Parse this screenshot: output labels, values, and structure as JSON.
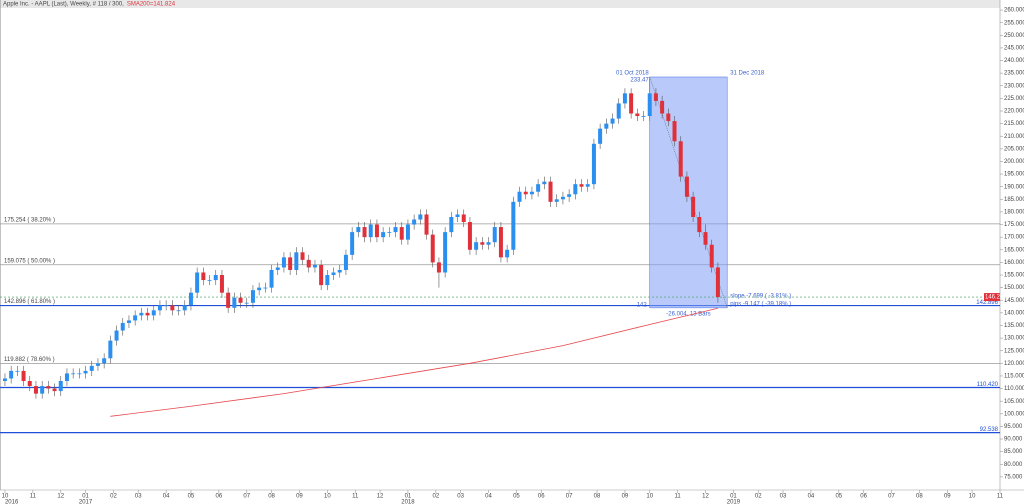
{
  "chart_data": {
    "type": "candlestick",
    "title": "Apple Inc. - AAPL (Last), Weekly, # 118 / 300,",
    "subtitle": "SMA200=141.824",
    "up_color": "#2a8ff0",
    "down_color": "#e0303a",
    "ohlc": [
      [
        113,
        116,
        111,
        114
      ],
      [
        114,
        119,
        112,
        117
      ],
      [
        117,
        119,
        115,
        117
      ],
      [
        117,
        119,
        111,
        113
      ],
      [
        113,
        115,
        109,
        111
      ],
      [
        111,
        113,
        106,
        108
      ],
      [
        108,
        113,
        106,
        111
      ],
      [
        111,
        113,
        108,
        110
      ],
      [
        110,
        112,
        107,
        109
      ],
      [
        109,
        115,
        107,
        113
      ],
      [
        113,
        118,
        111,
        116
      ],
      [
        116,
        118,
        114,
        116
      ],
      [
        116,
        118,
        114,
        116
      ],
      [
        116,
        119,
        114,
        117
      ],
      [
        117,
        121,
        115,
        119
      ],
      [
        119,
        122,
        117,
        120
      ],
      [
        120,
        124,
        118,
        122
      ],
      [
        122,
        131,
        120,
        129
      ],
      [
        129,
        135,
        127,
        133
      ],
      [
        133,
        138,
        131,
        136
      ],
      [
        136,
        139,
        134,
        137
      ],
      [
        137,
        141,
        135,
        139
      ],
      [
        139,
        142,
        137,
        140
      ],
      [
        140,
        142,
        137,
        139
      ],
      [
        139,
        143,
        137,
        141
      ],
      [
        141,
        145,
        139,
        143
      ],
      [
        143,
        145,
        141,
        143
      ],
      [
        143,
        145,
        139,
        141
      ],
      [
        141,
        143,
        139,
        141
      ],
      [
        141,
        145,
        139,
        143
      ],
      [
        143,
        150,
        141,
        148
      ],
      [
        148,
        158,
        146,
        156
      ],
      [
        156,
        158,
        151,
        153
      ],
      [
        153,
        155,
        151,
        153
      ],
      [
        153,
        157,
        151,
        155
      ],
      [
        155,
        157,
        146,
        148
      ],
      [
        148,
        150,
        140,
        142
      ],
      [
        142,
        148,
        140,
        146
      ],
      [
        146,
        148,
        142,
        144
      ],
      [
        144,
        146,
        142,
        144
      ],
      [
        144,
        151,
        142,
        149
      ],
      [
        149,
        152,
        147,
        150
      ],
      [
        150,
        152,
        148,
        150
      ],
      [
        150,
        159,
        148,
        157
      ],
      [
        157,
        160,
        155,
        158
      ],
      [
        158,
        164,
        156,
        162
      ],
      [
        162,
        164,
        155,
        157
      ],
      [
        157,
        166,
        155,
        164
      ],
      [
        164,
        166,
        159,
        161
      ],
      [
        161,
        163,
        156,
        158
      ],
      [
        158,
        161,
        156,
        159
      ],
      [
        159,
        161,
        149,
        151
      ],
      [
        151,
        157,
        149,
        155
      ],
      [
        155,
        158,
        153,
        156
      ],
      [
        156,
        159,
        154,
        157
      ],
      [
        157,
        165,
        155,
        163
      ],
      [
        163,
        174,
        161,
        172
      ],
      [
        172,
        176,
        170,
        174
      ],
      [
        174,
        176,
        168,
        170
      ],
      [
        170,
        177,
        168,
        175
      ],
      [
        175,
        177,
        168,
        170
      ],
      [
        170,
        174,
        168,
        172
      ],
      [
        172,
        174,
        170,
        172
      ],
      [
        172,
        176,
        170,
        174
      ],
      [
        174,
        176,
        167,
        169
      ],
      [
        169,
        177,
        167,
        175
      ],
      [
        175,
        179,
        173,
        177
      ],
      [
        177,
        181,
        175,
        179
      ],
      [
        179,
        181,
        169,
        171
      ],
      [
        171,
        173,
        158,
        160
      ],
      [
        160,
        162,
        150,
        156
      ],
      [
        156,
        174,
        154,
        172
      ],
      [
        172,
        180,
        170,
        178
      ],
      [
        178,
        181,
        176,
        179
      ],
      [
        179,
        181,
        174,
        176
      ],
      [
        176,
        178,
        163,
        165
      ],
      [
        165,
        170,
        163,
        168
      ],
      [
        168,
        170,
        165,
        167
      ],
      [
        167,
        170,
        165,
        168
      ],
      [
        168,
        176,
        166,
        174
      ],
      [
        174,
        176,
        160,
        162
      ],
      [
        162,
        167,
        160,
        165
      ],
      [
        165,
        186,
        163,
        184
      ],
      [
        184,
        190,
        182,
        188
      ],
      [
        188,
        190,
        185,
        187
      ],
      [
        187,
        190,
        185,
        188
      ],
      [
        188,
        193,
        186,
        191
      ],
      [
        191,
        194,
        189,
        192
      ],
      [
        192,
        194,
        182,
        184
      ],
      [
        184,
        187,
        182,
        185
      ],
      [
        185,
        188,
        183,
        186
      ],
      [
        186,
        189,
        184,
        187
      ],
      [
        187,
        193,
        185,
        191
      ],
      [
        191,
        193,
        188,
        190
      ],
      [
        190,
        193,
        188,
        191
      ],
      [
        191,
        209,
        189,
        207
      ],
      [
        207,
        215,
        205,
        213
      ],
      [
        213,
        217,
        211,
        215
      ],
      [
        215,
        219,
        213,
        217
      ],
      [
        217,
        225,
        215,
        223
      ],
      [
        223,
        229,
        221,
        227
      ],
      [
        227,
        229,
        217,
        219
      ],
      [
        219,
        221,
        216,
        218
      ],
      [
        218,
        220,
        216,
        218
      ],
      [
        218,
        233.47,
        216,
        227
      ],
      [
        227,
        229,
        222,
        224
      ],
      [
        224,
        226,
        217,
        219
      ],
      [
        219,
        221,
        214,
        216
      ],
      [
        216,
        218,
        206,
        208
      ],
      [
        208,
        210,
        192,
        194
      ],
      [
        194,
        196,
        184,
        186
      ],
      [
        186,
        188,
        176,
        178
      ],
      [
        178,
        180,
        170,
        172
      ],
      [
        172,
        175,
        165,
        167
      ],
      [
        167,
        169,
        156,
        158
      ],
      [
        158,
        160,
        144,
        146.263
      ]
    ],
    "sma": {
      "name": "SMA200",
      "color": "#e8454a",
      "x": [
        17,
        30,
        45,
        60,
        75,
        90,
        105,
        115
      ],
      "values": [
        99,
        103,
        108,
        114,
        120,
        127,
        136,
        141.824
      ]
    },
    "fib_levels": [
      {
        "value": 175.254,
        "label": "175.254 ( 38.20% )"
      },
      {
        "value": 159.075,
        "label": "159.075 ( 50.00% )"
      },
      {
        "value": 142.896,
        "label": "142.896 ( 61.80% )"
      },
      {
        "value": 119.882,
        "label": "119.882 ( 78.60% )"
      }
    ],
    "support_lines": [
      {
        "value": 142.896,
        "label": "142.896"
      },
      {
        "value": 110.42,
        "label": "110.420"
      },
      {
        "value": 92.538,
        "label": "92.538"
      }
    ],
    "last_price": 146.263,
    "measure": {
      "x": [
        104,
        116.5
      ],
      "y": [
        233.47,
        142
      ],
      "start_label": "01 Oct 2018",
      "end_label": "31 Dec 2018",
      "bars_label": "-26.004, 13 Bars",
      "slope_label": "slope -7.699 ( -3.81% )",
      "pips_label": "pips -9.147 ( -39.18% )"
    },
    "xlim": [
      -0.8,
      160.5
    ],
    "ylim": [
      69.8,
      262.8
    ],
    "xticks": [
      {
        "value": 0,
        "label": "10"
      },
      {
        "value": 4.5,
        "label": "11"
      },
      {
        "value": 9,
        "label": "12"
      },
      {
        "value": 13,
        "label": "01"
      },
      {
        "value": 17.5,
        "label": "02"
      },
      {
        "value": 21.5,
        "label": "03"
      },
      {
        "value": 26,
        "label": "04"
      },
      {
        "value": 30,
        "label": "05"
      },
      {
        "value": 34.5,
        "label": "06"
      },
      {
        "value": 39,
        "label": "07"
      },
      {
        "value": 43,
        "label": "08"
      },
      {
        "value": 47.5,
        "label": "09"
      },
      {
        "value": 52,
        "label": "10"
      },
      {
        "value": 56.5,
        "label": "11"
      },
      {
        "value": 60.5,
        "label": "12"
      },
      {
        "value": 65,
        "label": "01"
      },
      {
        "value": 69.5,
        "label": "02"
      },
      {
        "value": 73.5,
        "label": "03"
      },
      {
        "value": 78,
        "label": "04"
      },
      {
        "value": 82.5,
        "label": "05"
      },
      {
        "value": 86.5,
        "label": "06"
      },
      {
        "value": 91,
        "label": "07"
      },
      {
        "value": 95.5,
        "label": "08"
      },
      {
        "value": 100,
        "label": "09"
      },
      {
        "value": 104,
        "label": "10"
      },
      {
        "value": 108.5,
        "label": "11"
      },
      {
        "value": 113,
        "label": "12"
      },
      {
        "value": 117.5,
        "label": "01"
      },
      {
        "value": 121.5,
        "label": "02"
      },
      {
        "value": 125.5,
        "label": "03"
      },
      {
        "value": 130,
        "label": "04"
      },
      {
        "value": 134.5,
        "label": "05"
      },
      {
        "value": 138.5,
        "label": "06"
      },
      {
        "value": 143,
        "label": "07"
      },
      {
        "value": 147.5,
        "label": "08"
      },
      {
        "value": 152,
        "label": "09"
      },
      {
        "value": 156,
        "label": "10"
      },
      {
        "value": 160.5,
        "label": "11"
      }
    ],
    "year_ticks": [
      {
        "value": 0,
        "label": "2016"
      },
      {
        "value": 13,
        "label": "2017"
      },
      {
        "value": 65,
        "label": "2018"
      },
      {
        "value": 117.5,
        "label": "2019"
      }
    ],
    "yticks": [
      {
        "value": 260,
        "label": "260.000"
      },
      {
        "value": 255,
        "label": "255.000"
      },
      {
        "value": 250,
        "label": "250.000"
      },
      {
        "value": 245,
        "label": "245.000"
      },
      {
        "value": 240,
        "label": "240.000"
      },
      {
        "value": 235,
        "label": "235.000"
      },
      {
        "value": 230,
        "label": "230.000"
      },
      {
        "value": 225,
        "label": "225.000"
      },
      {
        "value": 220,
        "label": "220.000"
      },
      {
        "value": 215,
        "label": "215.000"
      },
      {
        "value": 210,
        "label": "210.000"
      },
      {
        "value": 205,
        "label": "205.000"
      },
      {
        "value": 200,
        "label": "200.000"
      },
      {
        "value": 195,
        "label": "195.000"
      },
      {
        "value": 190,
        "label": "190.000"
      },
      {
        "value": 185,
        "label": "185.000"
      },
      {
        "value": 180,
        "label": "180.000"
      },
      {
        "value": 175,
        "label": "175.000"
      },
      {
        "value": 170,
        "label": "170.000"
      },
      {
        "value": 165,
        "label": "165.000"
      },
      {
        "value": 160,
        "label": "160.000"
      },
      {
        "value": 155,
        "label": "155.000"
      },
      {
        "value": 150,
        "label": "150.000"
      },
      {
        "value": 145,
        "label": "145.000"
      },
      {
        "value": 140,
        "label": "140.000"
      },
      {
        "value": 135,
        "label": "135.000"
      },
      {
        "value": 130,
        "label": "130.000"
      },
      {
        "value": 125,
        "label": "125.000"
      },
      {
        "value": 120,
        "label": "120.000"
      },
      {
        "value": 115,
        "label": "115.000"
      },
      {
        "value": 110,
        "label": "110.000"
      },
      {
        "value": 105,
        "label": "105.000"
      },
      {
        "value": 100,
        "label": "100.000"
      },
      {
        "value": 95,
        "label": "95.000"
      },
      {
        "value": 90,
        "label": "90.000"
      },
      {
        "value": 85,
        "label": "85.000"
      },
      {
        "value": 80,
        "label": "80.000"
      },
      {
        "value": 75,
        "label": "75.000"
      }
    ]
  }
}
